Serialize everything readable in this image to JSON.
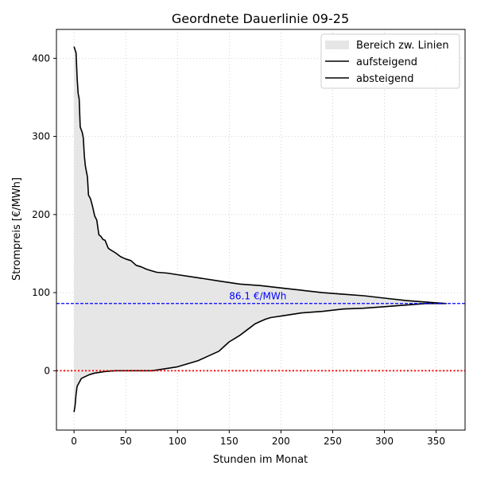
{
  "chart_data": {
    "type": "area",
    "title": "Geordnete Dauerlinie 09-25",
    "xlabel": "Stunden im Monat",
    "ylabel": "Strompreis [€/MWh]",
    "xlim": [
      -17,
      378
    ],
    "ylim": [
      -76,
      437
    ],
    "xticks": [
      0,
      50,
      100,
      150,
      200,
      250,
      300,
      350
    ],
    "yticks": [
      0,
      100,
      200,
      300,
      400
    ],
    "grid": true,
    "legend_position": "upper right",
    "legend": [
      "Bereich zw. Linien",
      "aufsteigend",
      "absteigend"
    ],
    "mean_line": {
      "value": 86.1,
      "label": "86.1 €/MWh",
      "color": "#0000ff"
    },
    "zero_line": {
      "value": 0,
      "color": "#ff0000"
    },
    "fill_color": "#e6e6e6",
    "series": [
      {
        "name": "absteigend",
        "color": "#000000",
        "x": [
          0,
          2,
          3,
          4,
          5,
          6,
          8,
          9,
          10,
          11,
          12,
          13,
          14,
          16,
          18,
          20,
          22,
          24,
          26,
          28,
          30,
          33,
          35,
          40,
          45,
          50,
          55,
          60,
          65,
          70,
          75,
          80,
          90,
          100,
          120,
          140,
          160,
          180,
          200,
          220,
          240,
          260,
          280,
          300,
          320,
          340,
          350,
          360
        ],
        "y": [
          415,
          407,
          375,
          355,
          348,
          312,
          305,
          298,
          275,
          262,
          255,
          248,
          225,
          220,
          210,
          198,
          193,
          174,
          172,
          168,
          167,
          157,
          155,
          151,
          146,
          143,
          141,
          135,
          133,
          130,
          128,
          126,
          125,
          123,
          119,
          115,
          111,
          109,
          106,
          103,
          100,
          98,
          96,
          93,
          90,
          88,
          87,
          86
        ]
      },
      {
        "name": "aufsteigend",
        "color": "#000000",
        "x": [
          0,
          1,
          2,
          3,
          5,
          7,
          10,
          15,
          20,
          25,
          30,
          35,
          40,
          50,
          60,
          70,
          75,
          80,
          90,
          100,
          110,
          120,
          130,
          140,
          145,
          150,
          155,
          160,
          165,
          170,
          175,
          180,
          185,
          190,
          195,
          200,
          210,
          220,
          240,
          260,
          280,
          300,
          320,
          340,
          350,
          360
        ],
        "y": [
          -53,
          -45,
          -30,
          -20,
          -15,
          -10,
          -8,
          -5,
          -3,
          -2,
          -1,
          -0.5,
          0,
          0,
          0,
          0,
          0,
          1,
          3,
          5,
          9,
          13,
          19,
          25,
          31,
          37,
          41,
          45,
          50,
          55,
          60,
          63,
          66,
          68,
          69,
          70,
          72,
          74,
          76,
          79,
          80,
          82,
          84,
          86,
          86,
          86
        ]
      }
    ]
  }
}
